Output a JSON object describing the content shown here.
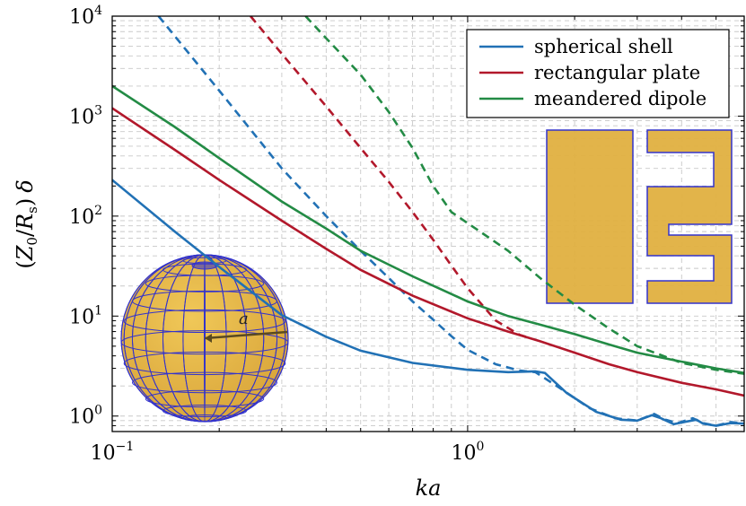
{
  "chart_data": {
    "type": "line",
    "xlabel": "ka",
    "ylabel": "(Z0/Rs) δ",
    "ylabel_parts": {
      "open": "(",
      "z": "Z",
      "z_sub": "0",
      "slash": "/",
      "r": "R",
      "r_sub": "s",
      "close": ")",
      "delta": "δ"
    },
    "x_scale": "log",
    "y_scale": "log",
    "xlim": [
      0.1,
      6
    ],
    "ylim": [
      0.7,
      10000
    ],
    "grid": true,
    "legend_position": "top-right",
    "x_ticks": [
      {
        "value": 0.1,
        "base": "10",
        "exp": "−1"
      },
      {
        "value": 1,
        "base": "10",
        "exp": "0"
      }
    ],
    "y_ticks": [
      {
        "value": 1,
        "base": "10",
        "exp": "0"
      },
      {
        "value": 10,
        "base": "10",
        "exp": "1"
      },
      {
        "value": 100,
        "base": "10",
        "exp": "2"
      },
      {
        "value": 1000,
        "base": "10",
        "exp": "3"
      },
      {
        "value": 10000,
        "base": "10",
        "exp": "4"
      }
    ],
    "series": [
      {
        "name": "spherical shell",
        "color": "#2171b5",
        "solid": [
          [
            0.1,
            230
          ],
          [
            0.15,
            70
          ],
          [
            0.2,
            31
          ],
          [
            0.3,
            10.2
          ],
          [
            0.4,
            6.2
          ],
          [
            0.5,
            4.5
          ],
          [
            0.7,
            3.4
          ],
          [
            1.0,
            2.9
          ],
          [
            1.3,
            2.75
          ],
          [
            1.55,
            2.8
          ],
          [
            1.65,
            2.7
          ],
          [
            1.9,
            1.7
          ],
          [
            2.3,
            1.1
          ],
          [
            2.7,
            0.92
          ],
          [
            3.0,
            0.9
          ],
          [
            3.3,
            1.02
          ],
          [
            3.5,
            0.95
          ],
          [
            3.8,
            0.83
          ],
          [
            4.0,
            0.86
          ],
          [
            4.4,
            0.92
          ],
          [
            4.6,
            0.84
          ],
          [
            5.0,
            0.8
          ],
          [
            5.5,
            0.85
          ],
          [
            6.0,
            0.84
          ]
        ],
        "dashed": [
          [
            0.135,
            10000
          ],
          [
            0.2,
            1800
          ],
          [
            0.3,
            300
          ],
          [
            0.4,
            100
          ],
          [
            0.5,
            45
          ],
          [
            0.6,
            24
          ],
          [
            0.7,
            14
          ],
          [
            0.8,
            9.2
          ],
          [
            0.9,
            6.3
          ],
          [
            1.0,
            4.6
          ],
          [
            1.2,
            3.3
          ],
          [
            1.4,
            2.85
          ],
          [
            1.55,
            2.75
          ],
          [
            1.8,
            1.95
          ],
          [
            2.2,
            1.2
          ],
          [
            2.6,
            0.95
          ],
          [
            3.0,
            0.9
          ],
          [
            3.35,
            1.05
          ],
          [
            3.6,
            0.92
          ],
          [
            3.9,
            0.85
          ],
          [
            4.3,
            0.95
          ],
          [
            4.6,
            0.85
          ],
          [
            5.0,
            0.8
          ],
          [
            5.5,
            0.87
          ],
          [
            6.0,
            0.84
          ]
        ]
      },
      {
        "name": "rectangular plate",
        "color": "#b2182b",
        "solid": [
          [
            0.1,
            1200
          ],
          [
            0.15,
            460
          ],
          [
            0.2,
            230
          ],
          [
            0.3,
            90
          ],
          [
            0.4,
            47
          ],
          [
            0.5,
            29
          ],
          [
            0.7,
            16
          ],
          [
            1.0,
            9.5
          ],
          [
            1.3,
            7.0
          ],
          [
            1.6,
            5.6
          ],
          [
            2.0,
            4.3
          ],
          [
            2.5,
            3.3
          ],
          [
            3.0,
            2.75
          ],
          [
            4.0,
            2.15
          ],
          [
            5.0,
            1.85
          ],
          [
            6.0,
            1.6
          ]
        ],
        "dashed": [
          [
            0.245,
            10000
          ],
          [
            0.3,
            4200
          ],
          [
            0.4,
            1250
          ],
          [
            0.5,
            480
          ],
          [
            0.6,
            220
          ],
          [
            0.7,
            110
          ],
          [
            0.8,
            58
          ],
          [
            0.9,
            32
          ],
          [
            1.0,
            19
          ],
          [
            1.2,
            9.0
          ],
          [
            1.4,
            6.5
          ],
          [
            1.5,
            6.0
          ]
        ]
      },
      {
        "name": "meandered dipole",
        "color": "#238b45",
        "solid": [
          [
            0.1,
            2000
          ],
          [
            0.15,
            780
          ],
          [
            0.2,
            380
          ],
          [
            0.3,
            140
          ],
          [
            0.4,
            75
          ],
          [
            0.5,
            45
          ],
          [
            0.7,
            25
          ],
          [
            1.0,
            14
          ],
          [
            1.3,
            10
          ],
          [
            1.6,
            8.2
          ],
          [
            2.0,
            6.6
          ],
          [
            2.5,
            5.2
          ],
          [
            3.0,
            4.3
          ],
          [
            4.0,
            3.5
          ],
          [
            5.0,
            3.0
          ],
          [
            6.0,
            2.7
          ]
        ],
        "dashed": [
          [
            0.35,
            10000
          ],
          [
            0.4,
            6000
          ],
          [
            0.5,
            2600
          ],
          [
            0.6,
            1100
          ],
          [
            0.7,
            480
          ],
          [
            0.8,
            200
          ],
          [
            0.9,
            110
          ],
          [
            1.0,
            85
          ],
          [
            1.3,
            45
          ],
          [
            1.6,
            24
          ],
          [
            2.0,
            13
          ],
          [
            2.5,
            7.5
          ],
          [
            3.0,
            5.0
          ],
          [
            4.0,
            3.4
          ],
          [
            5.0,
            2.9
          ],
          [
            6.0,
            2.65
          ]
        ]
      }
    ],
    "annotation": {
      "label": "a"
    },
    "inset_colors": {
      "fill": "#e0b040",
      "stroke": "#3333cc"
    }
  }
}
